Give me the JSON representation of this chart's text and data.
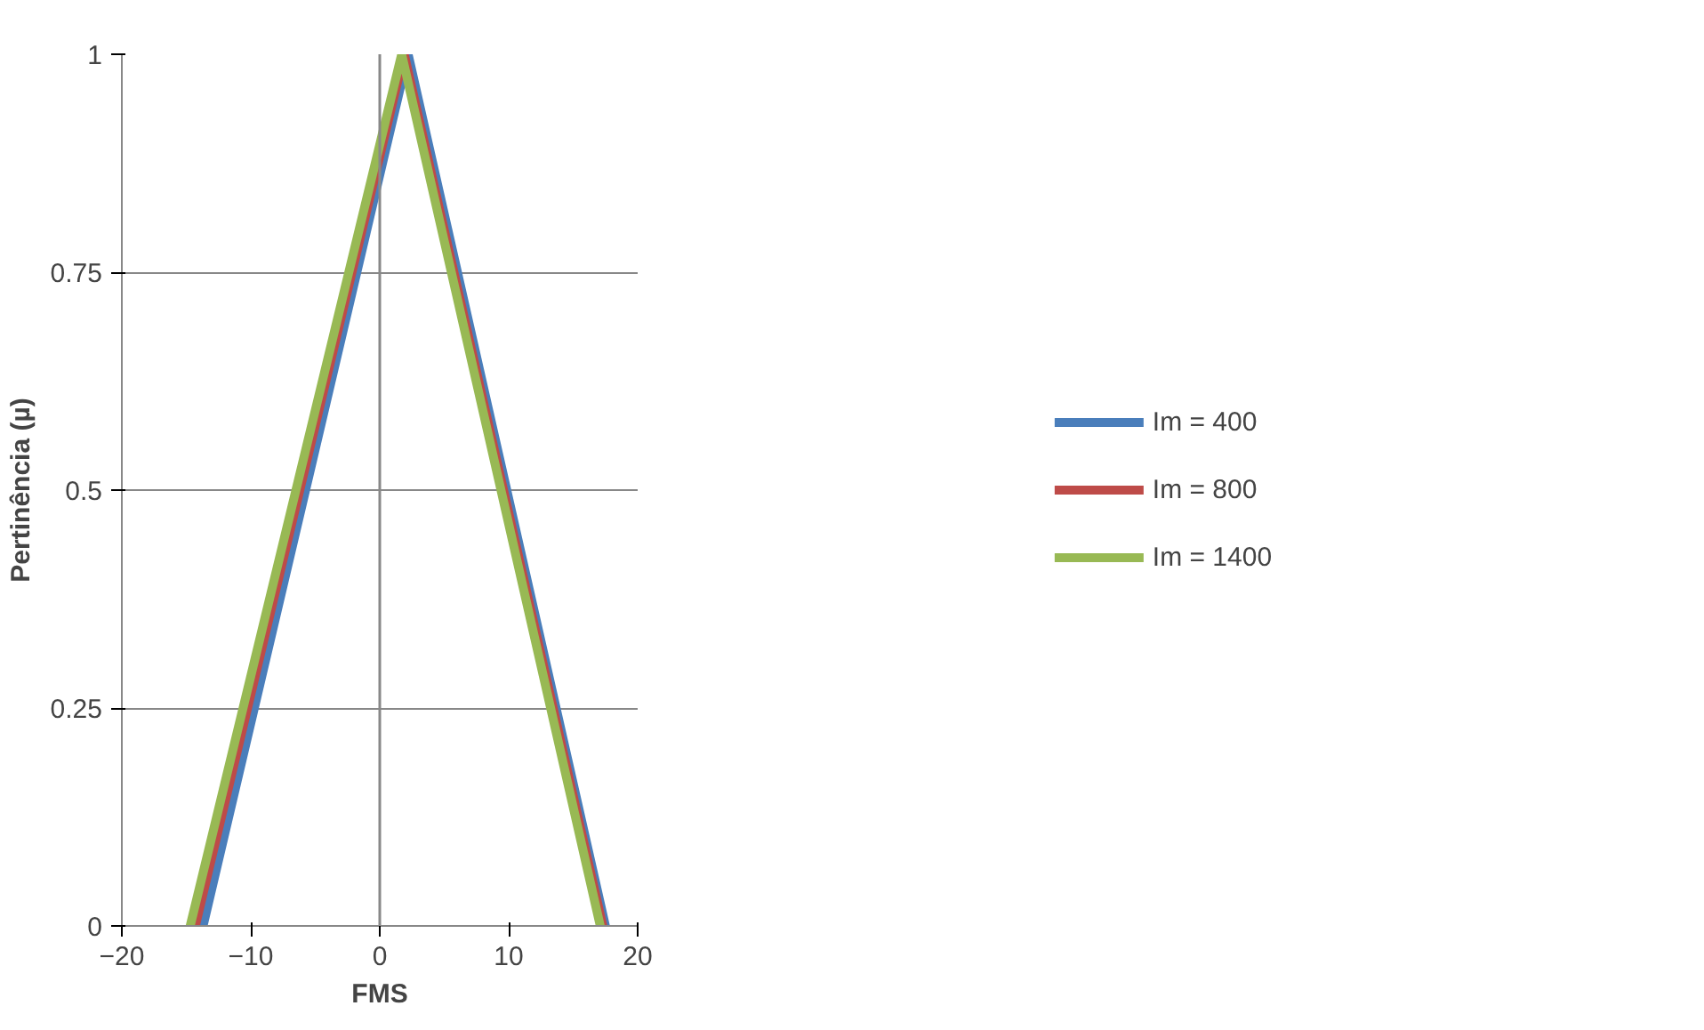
{
  "chart_data": {
    "type": "line",
    "xlabel": "FMS",
    "ylabel": "Pertinência (µ)",
    "xlim": [
      -20,
      20
    ],
    "xticks": [
      -20,
      -10,
      0,
      10,
      20
    ],
    "ylim": [
      0,
      1
    ],
    "yticks": [
      0,
      0.25,
      0.5,
      0.75,
      1
    ],
    "grid": "y",
    "legend": "right",
    "marker": "none",
    "line_style": "solid",
    "series": [
      {
        "name": "Im = 400",
        "color": "#4a7ebb",
        "x": [
          -13.7,
          2.2,
          17.5
        ],
        "values": [
          0,
          1,
          0
        ]
      },
      {
        "name": "Im = 800",
        "color": "#be4b48",
        "x": [
          -14.3,
          1.9,
          17.3
        ],
        "values": [
          0,
          1,
          0
        ]
      },
      {
        "name": "Im = 1400",
        "color": "#98b954",
        "x": [
          -14.7,
          1.7,
          17.1
        ],
        "values": [
          0,
          1,
          0
        ]
      }
    ]
  }
}
